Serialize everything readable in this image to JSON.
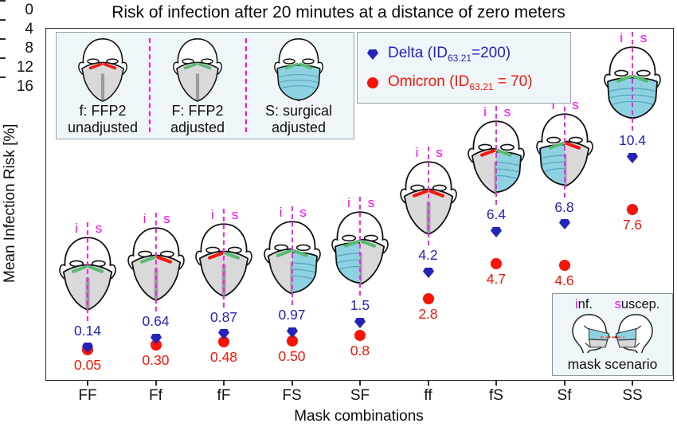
{
  "title": "Risk of infection after 20 minutes at a distance of zero meters",
  "axes": {
    "ylabel": "Mean Infection Risk [%]",
    "xlabel": "Mask combinations",
    "yticks": [
      "0",
      "4",
      "8",
      "12",
      "16"
    ]
  },
  "series_legend": {
    "delta": {
      "pre": "Delta (ID",
      "sub": "63.21",
      "post": "=200)"
    },
    "omicron": {
      "pre": "Omicron (ID",
      "sub": "63.21",
      "post": " = 70)"
    }
  },
  "mask_legend": {
    "items": [
      {
        "combo": "ff",
        "line1": "f: FFP2",
        "line2": "unadjusted"
      },
      {
        "combo": "FF",
        "line1": "F: FFP2",
        "line2": "adjusted"
      },
      {
        "combo": "SS",
        "line1": "S: surgical",
        "line2": "adjusted"
      }
    ]
  },
  "column_annotations": {
    "infected_letter": "i",
    "susceptible_letter": "s"
  },
  "inset": {
    "inf_first": "i",
    "inf_rest": "nf.",
    "suscep_first": "s",
    "suscep_rest": "uscep.",
    "caption": "mask scenario"
  },
  "colors": {
    "delta": "#2323b8",
    "omicron": "#f81408",
    "magenta": "#ff00ff",
    "ffp2_gray": "#d9d9d9",
    "surgical_blue": "#8ed2e2",
    "clip_adjusted_green": "#58ba72",
    "clip_unadjusted_red": "#ee1a10",
    "panel_bg": "#eef6fa"
  },
  "chart_data": {
    "type": "scatter",
    "title": "Risk of infection after 20 minutes at a distance of zero meters",
    "xlabel": "Mask combinations",
    "ylabel": "Mean Infection Risk [%]",
    "categories": [
      "FF",
      "Ff",
      "fF",
      "FS",
      "SF",
      "ff",
      "fS",
      "Sf",
      "SS"
    ],
    "series": [
      {
        "name": "Delta",
        "id_note": "ID63.21=200",
        "marker": "pentagon",
        "color": "#2323b8",
        "values": [
          0.14,
          0.64,
          0.87,
          0.97,
          1.5,
          4.2,
          6.4,
          6.8,
          10.4
        ],
        "labels": [
          "0.14",
          "0.64",
          "0.87",
          "0.97",
          "1.5",
          "4.2",
          "6.4",
          "6.8",
          "10.4"
        ]
      },
      {
        "name": "Omicron",
        "id_note": "ID63.21 = 70",
        "marker": "circle",
        "color": "#f81408",
        "values": [
          0.05,
          0.3,
          0.48,
          0.5,
          0.8,
          2.8,
          4.7,
          4.6,
          7.6
        ],
        "labels": [
          "0.05",
          "0.30",
          "0.48",
          "0.50",
          "0.8",
          "2.8",
          "4.7",
          "4.6",
          "7.6"
        ]
      }
    ],
    "yticks": [
      0,
      4,
      8,
      12,
      16
    ],
    "ylim": [
      -1.6,
      17.4
    ],
    "grid": false,
    "legend_position": "upper center"
  }
}
